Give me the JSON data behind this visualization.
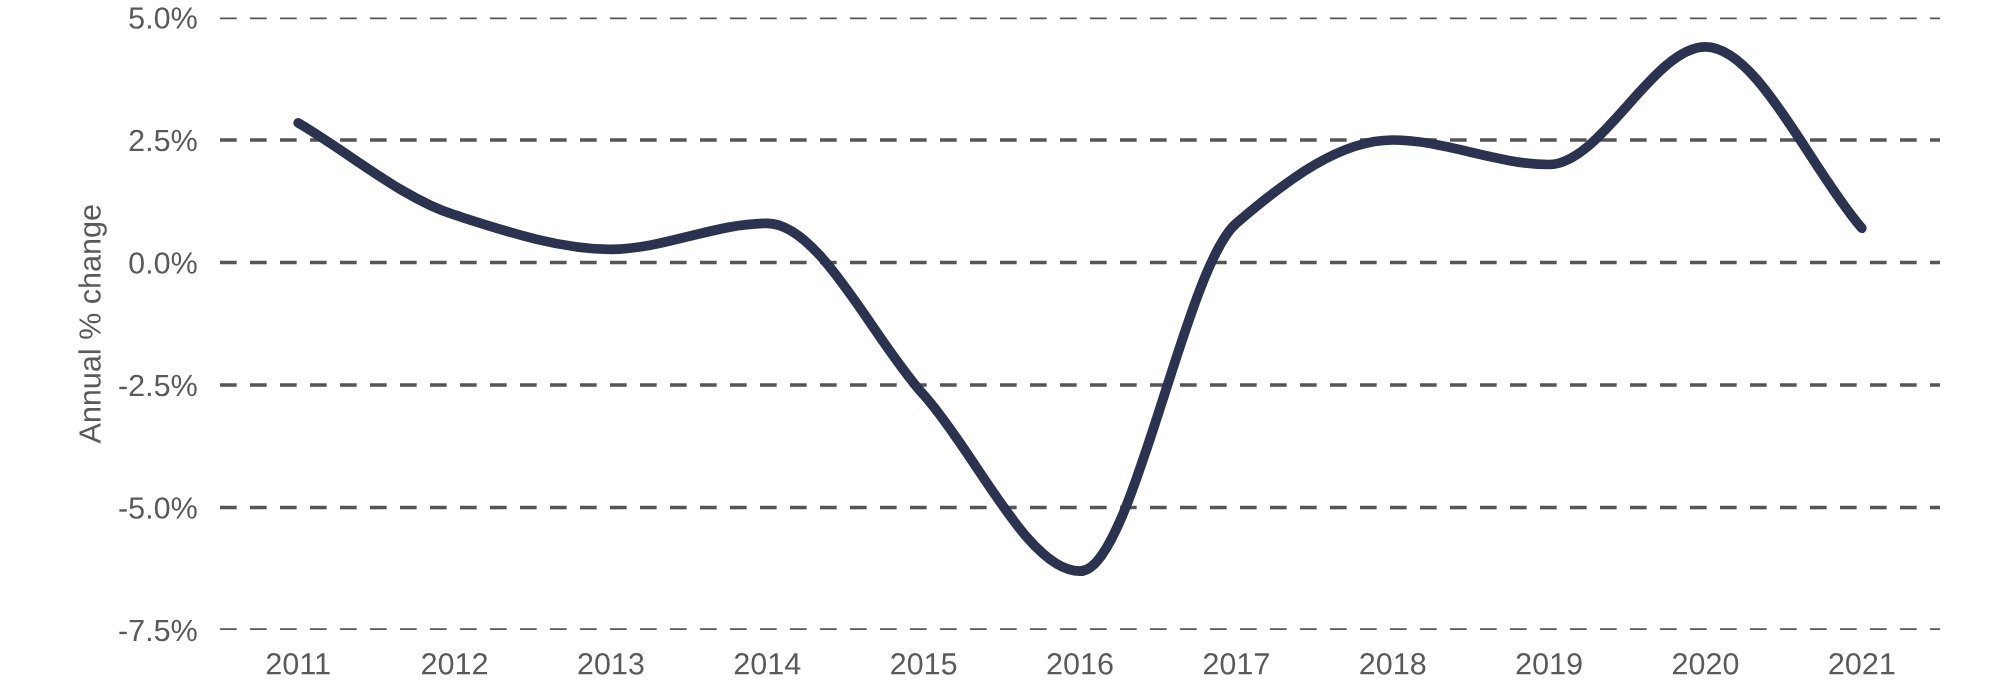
{
  "chart_data": {
    "type": "line",
    "ylabel": "Annual % change",
    "categories": [
      "2011",
      "2012",
      "2013",
      "2014",
      "2015",
      "2016",
      "2017",
      "2018",
      "2019",
      "2020",
      "2021"
    ],
    "series": [
      {
        "color": "#2b3350",
        "values": [
          2.85,
          0.97,
          0.27,
          0.8,
          -2.7,
          -6.3,
          0.8,
          2.5,
          2.0,
          4.4,
          0.7
        ]
      }
    ],
    "ylim": [
      -7.5,
      5.0
    ],
    "yticks": [
      {
        "value": -7.5,
        "label": "-7.5%"
      },
      {
        "value": -5.0,
        "label": "-5.0%"
      },
      {
        "value": -2.5,
        "label": "-2.5%"
      },
      {
        "value": 0.0,
        "label": "0.0%"
      },
      {
        "value": 2.5,
        "label": "2.5%"
      },
      {
        "value": 5.0,
        "label": "5.0%"
      }
    ],
    "grid": "y",
    "line_style": "solid",
    "marker": "none",
    "legend": false
  }
}
